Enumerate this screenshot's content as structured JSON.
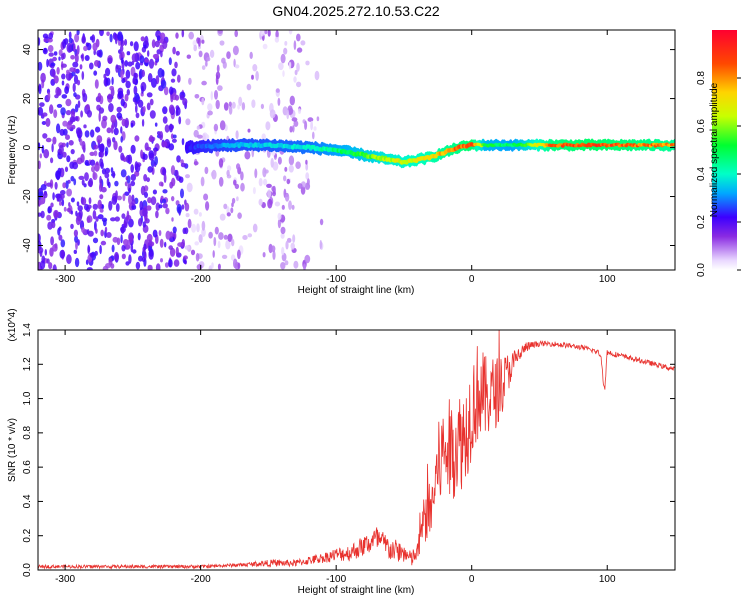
{
  "title": "GN04.2025.272.10.53.C22",
  "chart_data": [
    {
      "type": "heatmap",
      "name": "spectrogram",
      "xlabel": "Height of straight line (km)",
      "ylabel": "Frequency (Hz)",
      "xlim": [
        -320,
        150
      ],
      "ylim": [
        -50,
        48
      ],
      "xticks": [
        -300,
        -200,
        -100,
        0,
        100
      ],
      "xtick_labels": [
        "-300",
        "-200",
        "-100",
        "0",
        "100"
      ],
      "yticks": [
        -40,
        -20,
        0,
        20,
        40
      ],
      "ytick_labels": [
        "-40",
        "-20",
        "0",
        "20",
        "40"
      ],
      "colorbar": {
        "label": "Normalized spectral amplitude",
        "range": [
          0,
          1
        ],
        "ticks": [
          0.0,
          0.2,
          0.4,
          0.6,
          0.8
        ],
        "tick_labels": [
          "0.0",
          "0.2",
          "0.4",
          "0.6",
          "0.8"
        ]
      },
      "ridge": {
        "x": [
          -210,
          -180,
          -150,
          -120,
          -100,
          -80,
          -60,
          -50,
          -40,
          -30,
          -20,
          -10,
          0,
          10,
          30,
          60,
          90,
          120,
          150
        ],
        "y": [
          0,
          1,
          1,
          0,
          -1,
          -3,
          -5,
          -6,
          -5,
          -4,
          -2,
          0,
          1,
          1,
          1,
          1,
          1,
          1,
          1
        ],
        "amplitude": [
          0.25,
          0.35,
          0.38,
          0.42,
          0.5,
          0.6,
          0.7,
          0.72,
          0.75,
          0.8,
          0.85,
          0.9,
          0.95,
          0.55,
          0.5,
          0.9,
          0.95,
          0.9,
          0.85
        ]
      },
      "noise_region_x": [
        -320,
        -110
      ]
    },
    {
      "type": "line",
      "name": "snr",
      "xlabel": "Height of straight line (km)",
      "ylabel": "SNR (10 * v/v)",
      "scale_label": "(x10^4)",
      "xlim": [
        -320,
        150
      ],
      "ylim": [
        0,
        1.4
      ],
      "xticks": [
        -300,
        -200,
        -100,
        0,
        100
      ],
      "xtick_labels": [
        "-300",
        "-200",
        "-100",
        "0",
        "100"
      ],
      "yticks": [
        0,
        0.2,
        0.4,
        0.6,
        0.8,
        1.0,
        1.2,
        1.4
      ],
      "ytick_labels": [
        "0.0",
        "0.2",
        "0.4",
        "0.6",
        "0.8",
        "1.0",
        "1.2",
        "1.4"
      ],
      "series": [
        {
          "name": "SNR",
          "color": "#e8322e",
          "x": [
            -320,
            -250,
            -200,
            -170,
            -150,
            -130,
            -110,
            -100,
            -90,
            -80,
            -70,
            -60,
            -50,
            -45,
            -40,
            -35,
            -30,
            -25,
            -20,
            -15,
            -10,
            -5,
            0,
            5,
            10,
            20,
            30,
            40,
            50,
            60,
            70,
            80,
            90,
            95,
            98,
            100,
            110,
            120,
            130,
            140,
            150
          ],
          "y": [
            0.02,
            0.02,
            0.02,
            0.03,
            0.04,
            0.04,
            0.07,
            0.09,
            0.1,
            0.14,
            0.18,
            0.12,
            0.1,
            0.06,
            0.1,
            0.3,
            0.35,
            0.6,
            0.7,
            0.7,
            0.75,
            0.78,
            0.95,
            1.05,
            1.0,
            1.05,
            1.2,
            1.3,
            1.32,
            1.32,
            1.31,
            1.3,
            1.28,
            1.26,
            1.05,
            1.27,
            1.25,
            1.23,
            1.21,
            1.19,
            1.17
          ],
          "noise": [
            0.01,
            0.01,
            0.01,
            0.01,
            0.02,
            0.02,
            0.03,
            0.04,
            0.05,
            0.06,
            0.08,
            0.07,
            0.06,
            0.05,
            0.06,
            0.15,
            0.18,
            0.25,
            0.3,
            0.3,
            0.3,
            0.3,
            0.3,
            0.3,
            0.25,
            0.2,
            0.08,
            0.03,
            0.015,
            0.015,
            0.015,
            0.015,
            0.015,
            0.02,
            0.03,
            0.02,
            0.015,
            0.015,
            0.015,
            0.015,
            0.015
          ]
        }
      ]
    }
  ]
}
